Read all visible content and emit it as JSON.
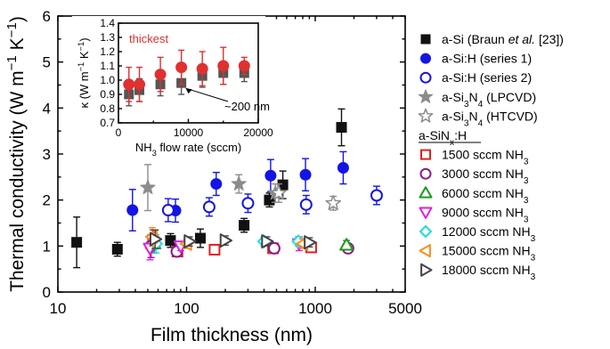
{
  "chart_data": {
    "type": "scatter",
    "xscale": "log",
    "xlim": [
      10,
      5000
    ],
    "ylim": [
      0,
      6
    ],
    "xticks": [
      "10",
      "100",
      "1000",
      "5000"
    ],
    "yticks": [
      "0",
      "1",
      "2",
      "3",
      "4",
      "5",
      "6"
    ],
    "xlabel": "Film thickness (nm)",
    "ylabel": "Thermal conductivity (W m⁻¹ K⁻¹)",
    "legend_placement": "outside-right",
    "legend_subheader": "a-SiNx:H",
    "series": [
      {
        "name": "a-Si (Braun et al. [23])",
        "marker": "square",
        "filled": true,
        "color": "#111111",
        "points": [
          [
            14,
            1.08,
            0.55
          ],
          [
            29,
            0.93,
            0.15
          ],
          [
            75,
            1.12,
            0.15
          ],
          [
            128,
            1.17,
            0.2
          ],
          [
            280,
            1.45,
            0.15
          ],
          [
            440,
            2.0,
            0.15
          ],
          [
            560,
            2.33,
            0.3
          ],
          [
            1600,
            3.58,
            0.4
          ]
        ]
      },
      {
        "name": "a-Si:H (series 1)",
        "marker": "circle",
        "filled": true,
        "color": "#1414e6",
        "points": [
          [
            38,
            1.78,
            0.45
          ],
          [
            82,
            1.77,
            0.25
          ],
          [
            170,
            2.35,
            0.25
          ],
          [
            450,
            2.53,
            0.35
          ],
          [
            840,
            2.55,
            0.35
          ],
          [
            1650,
            2.7,
            0.35
          ]
        ]
      },
      {
        "name": "a-Si:H (series 2)",
        "marker": "circle",
        "filled": false,
        "color": "#1414e6",
        "points": [
          [
            72,
            1.78,
            0.25
          ],
          [
            150,
            1.85,
            0.2
          ],
          [
            300,
            1.93,
            0.2
          ],
          [
            850,
            1.9,
            0.2
          ],
          [
            3000,
            2.1,
            0.2
          ]
        ]
      },
      {
        "name": "a-Si3N4 (LPCVD)",
        "marker": "star",
        "filled": true,
        "color": "#8c8c8c",
        "points": [
          [
            50,
            2.27,
            0.5
          ],
          [
            255,
            2.35,
            0.2
          ],
          [
            490,
            2.15,
            0.2
          ]
        ]
      },
      {
        "name": "a-Si3N4 (HTCVD)",
        "marker": "star",
        "filled": false,
        "color": "#8c8c8c",
        "points": [
          [
            520,
            2.15,
            0.2
          ],
          [
            1380,
            1.93,
            0.15
          ]
        ]
      },
      {
        "name": "1500 sccm NH3",
        "marker": "square",
        "filled": false,
        "color": "#e61e1e",
        "points": [
          [
            55,
            1.1,
            0.25
          ],
          [
            85,
            0.88,
            0.1
          ],
          [
            165,
            0.92,
            0.1
          ],
          [
            470,
            0.95,
            0.1
          ],
          [
            930,
            0.97,
            0.1
          ]
        ]
      },
      {
        "name": "3000 sccm NH3",
        "marker": "circle",
        "filled": false,
        "color": "#8b1a8b",
        "points": [
          [
            53,
            1.0,
            0.25
          ],
          [
            84,
            0.88,
            0.1
          ],
          [
            480,
            0.95,
            0.1
          ],
          [
            1800,
            0.95,
            0.1
          ]
        ]
      },
      {
        "name": "6000 sccm NH3",
        "marker": "triangle-up",
        "filled": false,
        "color": "#1a9a1a",
        "points": [
          [
            56,
            1.05,
            0.2
          ],
          [
            1750,
            1.02,
            0.1
          ]
        ]
      },
      {
        "name": "9000 sccm NH3",
        "marker": "triangle-down",
        "filled": false,
        "color": "#e21ee2",
        "points": [
          [
            52,
            0.95,
            0.25
          ],
          [
            90,
            1.0,
            0.1
          ],
          [
            750,
            1.05,
            0.15
          ]
        ]
      },
      {
        "name": "12000 sccm NH3",
        "marker": "diamond",
        "filled": false,
        "color": "#1edcdc",
        "points": [
          [
            58,
            1.05,
            0.2
          ],
          [
            400,
            1.1,
            0.1
          ],
          [
            740,
            1.1,
            0.1
          ]
        ]
      },
      {
        "name": "15000 sccm NH3",
        "marker": "triangle-left",
        "filled": false,
        "color": "#ff8c1a",
        "points": [
          [
            54,
            1.2,
            0.2
          ],
          [
            100,
            1.05,
            0.1
          ],
          [
            800,
            1.05,
            0.1
          ]
        ]
      },
      {
        "name": "18000 sccm NH3",
        "marker": "triangle-right",
        "filled": false,
        "color": "#444444",
        "points": [
          [
            57,
            1.15,
            0.2
          ],
          [
            105,
            1.1,
            0.1
          ],
          [
            200,
            1.12,
            0.1
          ],
          [
            420,
            1.1,
            0.1
          ],
          [
            900,
            1.08,
            0.1
          ]
        ]
      }
    ],
    "inset": {
      "type": "scatter",
      "xlim": [
        0,
        20000
      ],
      "ylim": [
        0.7,
        1.4
      ],
      "xticks": [
        "0",
        "10000",
        "20000"
      ],
      "yticks": [
        "0.7",
        "0.8",
        "0.9",
        "1.0",
        "1.1",
        "1.2",
        "1.3",
        "1.4"
      ],
      "xlabel": "NH3 flow rate (sccm)",
      "ylabel": "κ (W m⁻¹ K⁻¹)",
      "annotations": [
        "thickest",
        "~200 nm"
      ],
      "series": [
        {
          "name": "thickest",
          "marker": "circle",
          "filled": true,
          "color": "#e03030",
          "points": [
            [
              1500,
              0.97,
              0.12
            ],
            [
              3000,
              0.97,
              0.12
            ],
            [
              6000,
              1.04,
              0.12
            ],
            [
              9000,
              1.09,
              0.12
            ],
            [
              12000,
              1.08,
              0.12
            ],
            [
              15000,
              1.1,
              0.13
            ],
            [
              18000,
              1.1,
              0.06
            ]
          ]
        },
        {
          "name": "~200 nm",
          "marker": "square",
          "filled": true,
          "color": "#555555",
          "points": [
            [
              1500,
              0.9,
              0.08
            ],
            [
              3000,
              0.93,
              0.08
            ],
            [
              6000,
              0.97,
              0.08
            ],
            [
              9000,
              0.98,
              0.08
            ],
            [
              12000,
              1.03,
              0.08
            ],
            [
              15000,
              1.05,
              0.08
            ],
            [
              18000,
              1.05,
              0.06
            ]
          ]
        }
      ]
    }
  }
}
